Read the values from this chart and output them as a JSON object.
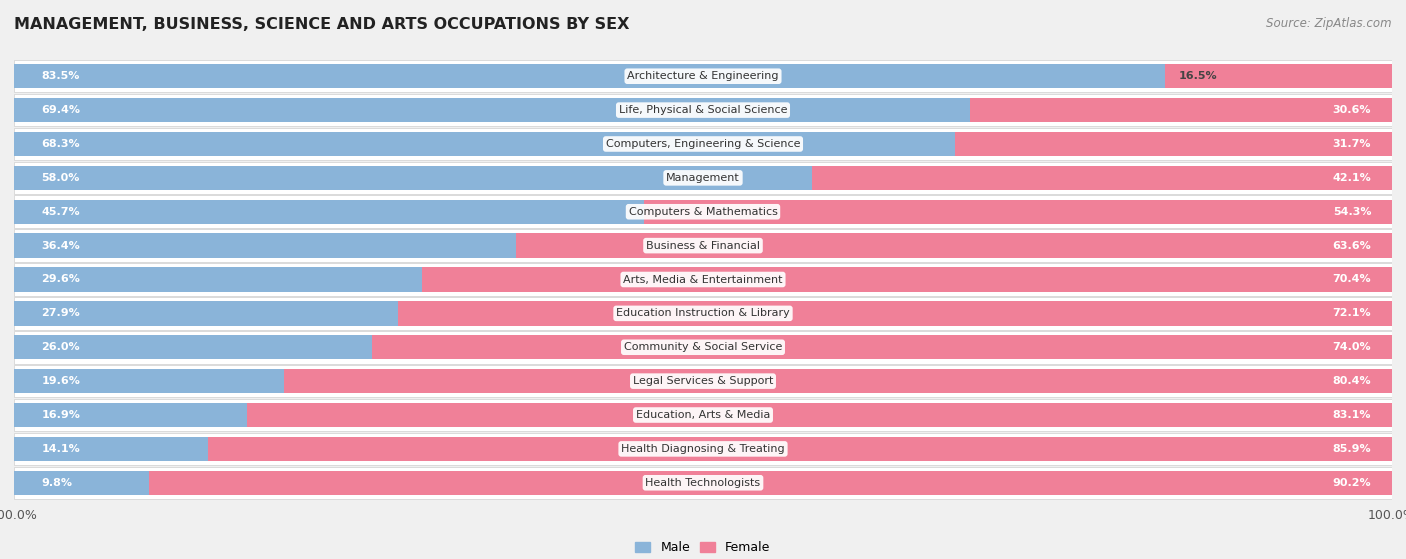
{
  "title": "MANAGEMENT, BUSINESS, SCIENCE AND ARTS OCCUPATIONS BY SEX",
  "source": "Source: ZipAtlas.com",
  "categories": [
    "Architecture & Engineering",
    "Life, Physical & Social Science",
    "Computers, Engineering & Science",
    "Management",
    "Computers & Mathematics",
    "Business & Financial",
    "Arts, Media & Entertainment",
    "Education Instruction & Library",
    "Community & Social Service",
    "Legal Services & Support",
    "Education, Arts & Media",
    "Health Diagnosing & Treating",
    "Health Technologists"
  ],
  "male_pct": [
    83.5,
    69.4,
    68.3,
    58.0,
    45.7,
    36.4,
    29.6,
    27.9,
    26.0,
    19.6,
    16.9,
    14.1,
    9.8
  ],
  "female_pct": [
    16.5,
    30.6,
    31.7,
    42.1,
    54.3,
    63.6,
    70.4,
    72.1,
    74.0,
    80.4,
    83.1,
    85.9,
    90.2
  ],
  "male_color": "#8ab4d9",
  "female_color": "#f08098",
  "bg_color": "#f0f0f0",
  "row_color_odd": "#e8e8e8",
  "row_color_even": "#f5f5f5",
  "title_fontsize": 11.5,
  "label_fontsize": 8.0,
  "pct_fontsize": 8.0,
  "source_fontsize": 8.5
}
